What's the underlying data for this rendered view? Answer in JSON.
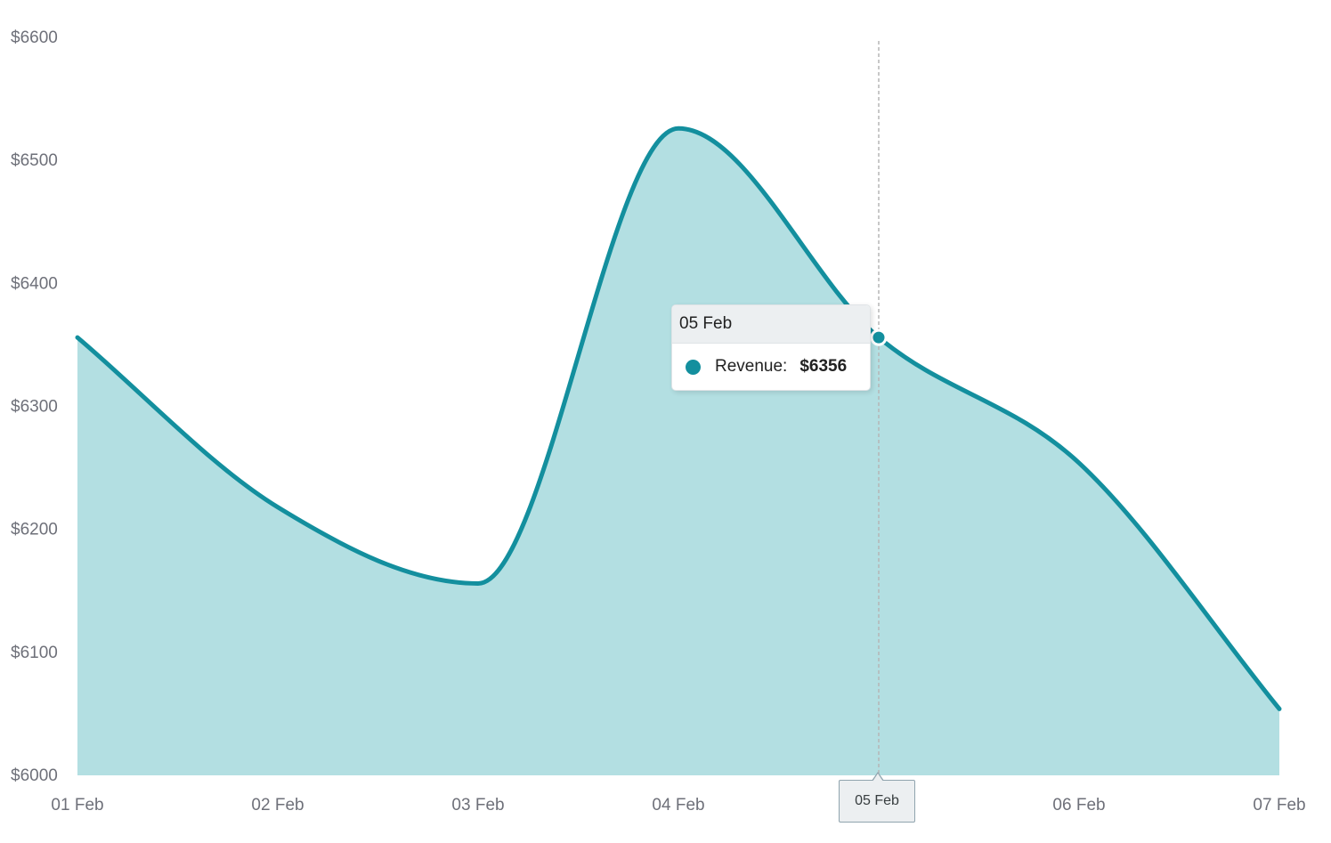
{
  "chart_data": {
    "type": "area",
    "title": "",
    "xlabel": "",
    "ylabel": "",
    "categories": [
      "01 Feb",
      "02 Feb",
      "03 Feb",
      "04 Feb",
      "05 Feb",
      "06 Feb",
      "07 Feb"
    ],
    "series": [
      {
        "name": "Revenue",
        "values": [
          6356,
          6218,
          6156,
          6526,
          6356,
          6254,
          6054
        ]
      }
    ],
    "ylim": [
      6000,
      6600
    ],
    "yticks": [
      "$6000",
      "$6100",
      "$6200",
      "$6300",
      "$6400",
      "$6500",
      "$6600"
    ],
    "grid": false,
    "legend": "none",
    "colors": {
      "line": "#138f9e",
      "fill": "#b3dfe2"
    }
  },
  "tooltip": {
    "title": "05 Feb",
    "series_label": "Revenue:",
    "value": "$6356"
  },
  "crosshair": {
    "label": "05 Feb",
    "index": 4
  }
}
